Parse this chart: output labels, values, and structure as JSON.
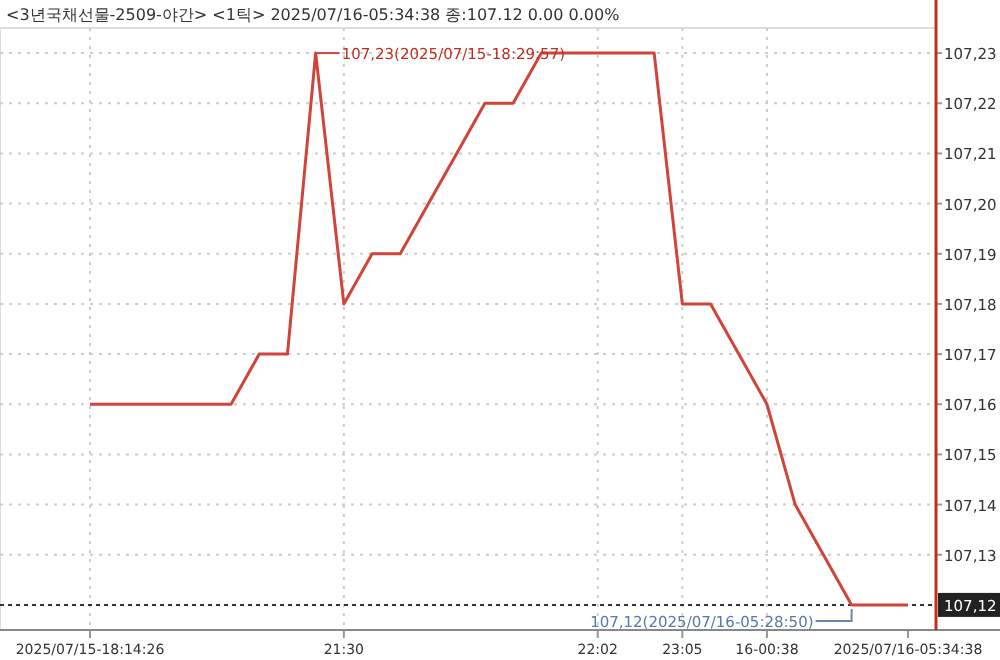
{
  "chart_data": {
    "type": "line",
    "title": "<3년국채선물-2509-야간> <1틱> 2025/07/16-05:34:38 종:107.12 0.00 0.00%",
    "categories": [
      "2025/07/15-18:14:26",
      null,
      null,
      null,
      null,
      null,
      null,
      null,
      null,
      "21:30",
      null,
      null,
      null,
      null,
      null,
      null,
      null,
      null,
      "22:02",
      null,
      null,
      "23:05",
      null,
      null,
      "16-00:38",
      null,
      null,
      null,
      null,
      "2025/07/16-05:34:38"
    ],
    "series": [
      {
        "color": "#d0443a",
        "values": [
          107.16,
          107.16,
          107.16,
          107.16,
          107.16,
          107.16,
          107.17,
          107.17,
          107.23,
          107.18,
          107.19,
          107.19,
          107.2,
          107.21,
          107.22,
          107.22,
          107.23,
          107.23,
          107.23,
          107.23,
          107.23,
          107.18,
          107.18,
          107.17,
          107.16,
          107.14,
          107.13,
          107.12,
          107.12,
          107.12
        ]
      }
    ],
    "ylim": [
      107.115,
      107.235
    ],
    "yticks": [
      {
        "value": 107.13,
        "label": "107,13"
      },
      {
        "value": 107.14,
        "label": "107,14"
      },
      {
        "value": 107.15,
        "label": "107,15"
      },
      {
        "value": 107.16,
        "label": "107,16"
      },
      {
        "value": 107.17,
        "label": "107,17"
      },
      {
        "value": 107.18,
        "label": "107,18"
      },
      {
        "value": 107.19,
        "label": "107,19"
      },
      {
        "value": 107.2,
        "label": "107,20"
      },
      {
        "value": 107.21,
        "label": "107,21"
      },
      {
        "value": 107.22,
        "label": "107,22"
      },
      {
        "value": 107.23,
        "label": "107,23"
      }
    ],
    "grid": true,
    "marker": "none",
    "line_style": "solid",
    "ref_lines": [
      {
        "axis": "y",
        "value": 107.12,
        "label": "107,12",
        "color": "#333333",
        "line_style": "dotted"
      }
    ],
    "annotations": [
      "107,23(2025/07/15-18:29:57)",
      "107,12(2025/07/16-05:28:50)"
    ]
  }
}
